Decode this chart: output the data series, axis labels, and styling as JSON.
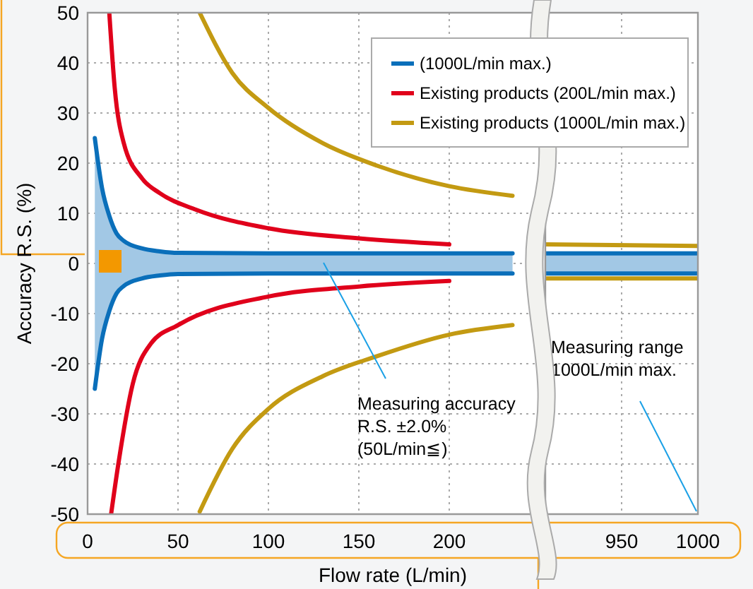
{
  "chart_data": [
    {
      "type": "line",
      "xlabel": "Flow rate (L/min)",
      "ylabel": "Accuracy R.S. (%)",
      "xlim": [
        0,
        250
      ],
      "xticks": [
        0,
        50,
        100,
        150,
        200
      ],
      "ylim": [
        -50,
        50
      ],
      "yticks": [
        -50,
        -40,
        -30,
        -20,
        -10,
        0,
        10,
        20,
        30,
        40,
        50
      ],
      "grid": true,
      "legend": "top right",
      "annotations": [
        "Measuring accuracy\nR.S. ±2.0%\n(50L/min≦)"
      ],
      "series": [
        {
          "name": "(1000L/min max.)",
          "color": "#0a6fba",
          "x": [
            4,
            8,
            12,
            16,
            20,
            30,
            40,
            50,
            100,
            150,
            200,
            235
          ],
          "values": [
            25,
            15,
            9.5,
            6,
            4.5,
            3,
            2.4,
            2.1,
            2,
            2,
            2,
            2
          ],
          "upper": [
            25,
            15,
            9.5,
            6,
            4.5,
            3,
            2.4,
            2.1,
            2,
            2,
            2,
            2
          ],
          "lower": [
            -25,
            -15,
            -9.5,
            -6,
            -4.5,
            -3,
            -2.4,
            -2.1,
            -2,
            -2,
            -2,
            -2
          ]
        },
        {
          "color": "#0a6fba",
          "x": [
            4,
            8,
            12,
            16,
            20,
            30,
            40,
            50,
            100,
            150,
            200,
            235
          ],
          "values": [
            -25,
            -15,
            -9.5,
            -6,
            -4.5,
            -3,
            -2.4,
            -2.1,
            -2,
            -2,
            -2,
            -2
          ]
        },
        {
          "name": "Existing products (200L/min max.)",
          "color": "#e0001b",
          "x": [
            12,
            15,
            20,
            30,
            40,
            60,
            100,
            150,
            200
          ],
          "values": [
            50,
            35,
            24,
            17,
            14,
            10.7,
            7,
            5,
            3.8
          ]
        },
        {
          "color": "#e0001b",
          "x": [
            13,
            17,
            25,
            35,
            50,
            100,
            150,
            200
          ],
          "values": [
            -50,
            -40,
            -24,
            -16,
            -12.3,
            -6.6,
            -4.6,
            -3.5
          ]
        },
        {
          "name": "Existing products (1000L/min max.)",
          "color": "#c39a12",
          "x": [
            62,
            80,
            100,
            130,
            160,
            200,
            235
          ],
          "values": [
            50,
            38,
            31,
            24,
            19.5,
            15.4,
            13.5
          ]
        },
        {
          "color": "#c39a12",
          "x": [
            62,
            80,
            100,
            130,
            160,
            200,
            235
          ],
          "values": [
            -49.5,
            -37,
            -29,
            -22.5,
            -18.5,
            -14.2,
            -12.3
          ]
        }
      ]
    },
    {
      "type": "line",
      "xlim": [
        900,
        1000
      ],
      "xticks": [
        {
          "value": 900,
          "label": null
        },
        950,
        1000
      ],
      "ylim": [
        -50,
        50
      ],
      "yticks": [
        -50,
        -40,
        -30,
        -20,
        -10,
        0,
        10,
        20,
        30,
        40,
        50
      ],
      "grid": true,
      "tick_labels": "x",
      "annotations": [
        "Measuring range\n1000L/min max."
      ],
      "series": [
        {
          "color": "#0a6fba",
          "x": [
            900,
            1000
          ],
          "values": [
            2,
            2
          ],
          "upper": [
            2,
            2
          ],
          "lower": [
            -2,
            -2
          ]
        },
        {
          "color": "#0a6fba",
          "x": [
            900,
            1000
          ],
          "values": [
            -2,
            -2
          ]
        },
        {
          "color": "#c39a12",
          "x": [
            900,
            1000
          ],
          "values": [
            3.8,
            3.5
          ]
        },
        {
          "color": "#c39a12",
          "x": [
            900,
            1000
          ],
          "values": [
            -3,
            -3
          ]
        }
      ]
    }
  ]
}
